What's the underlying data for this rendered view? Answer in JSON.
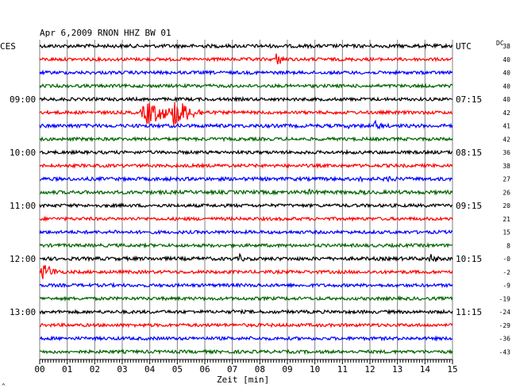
{
  "chart_data": {
    "type": "line",
    "title": "Apr 6,2009   RNON HHZ BW 01",
    "left_timezone": "CES",
    "right_timezone": "UTC",
    "dc_label": "DC",
    "xlabel": "Zeit [min]",
    "x_ticks": [
      "00",
      "01",
      "02",
      "03",
      "04",
      "05",
      "06",
      "07",
      "08",
      "09",
      "10",
      "11",
      "12",
      "13",
      "14",
      "15"
    ],
    "xlim": [
      0,
      15
    ],
    "grid": true,
    "trace_colors": [
      "#000000",
      "#ff0000",
      "#0000ff",
      "#006400"
    ],
    "left_hour_labels": [
      {
        "row": 4,
        "text": "09:00"
      },
      {
        "row": 8,
        "text": "10:00"
      },
      {
        "row": 12,
        "text": "11:00"
      },
      {
        "row": 16,
        "text": "12:00"
      },
      {
        "row": 20,
        "text": "13:00"
      }
    ],
    "right_hour_labels": [
      {
        "row": 0,
        "text": "UTC"
      },
      {
        "row": 4,
        "text": "07:15"
      },
      {
        "row": 8,
        "text": "08:15"
      },
      {
        "row": 12,
        "text": "09:15"
      },
      {
        "row": 16,
        "text": "10:15"
      },
      {
        "row": 20,
        "text": "11:15"
      }
    ],
    "dc_offsets": [
      "38",
      "40",
      "40",
      "40",
      "40",
      "42",
      "41",
      "42",
      "36",
      "38",
      "27",
      "26",
      "20",
      "21",
      "15",
      "8",
      "-0",
      "-2",
      "-9",
      "-19",
      "-24",
      "-29",
      "-36",
      "-43"
    ],
    "traces": [
      {
        "row": 0,
        "amp": 2.2,
        "events": [
          {
            "t": 13.4,
            "amp": 3,
            "dur": 0.4
          }
        ]
      },
      {
        "row": 1,
        "amp": 2.0,
        "events": [
          {
            "t": 7.6,
            "amp": 4,
            "dur": 0.6
          },
          {
            "t": 8.5,
            "amp": 9,
            "dur": 0.9
          }
        ]
      },
      {
        "row": 2,
        "amp": 2.0,
        "events": []
      },
      {
        "row": 3,
        "amp": 2.0,
        "events": [
          {
            "t": 5.8,
            "amp": 3,
            "dur": 0.4
          }
        ]
      },
      {
        "row": 4,
        "amp": 2.0,
        "events": []
      },
      {
        "row": 5,
        "amp": 2.0,
        "events": [
          {
            "t": 3.6,
            "amp": 16,
            "dur": 2.6
          },
          {
            "t": 4.7,
            "amp": 20,
            "dur": 1.8
          }
        ]
      },
      {
        "row": 6,
        "amp": 2.2,
        "events": [
          {
            "t": 1.3,
            "amp": 4,
            "dur": 0.3
          },
          {
            "t": 11.1,
            "amp": 4,
            "dur": 0.8
          },
          {
            "t": 12.1,
            "amp": 7,
            "dur": 0.9
          }
        ]
      },
      {
        "row": 7,
        "amp": 2.0,
        "events": []
      },
      {
        "row": 8,
        "amp": 2.0,
        "events": []
      },
      {
        "row": 9,
        "amp": 2.0,
        "events": []
      },
      {
        "row": 10,
        "amp": 2.2,
        "events": [
          {
            "t": 11.5,
            "amp": 4,
            "dur": 1.2
          },
          {
            "t": 12.6,
            "amp": 6,
            "dur": 0.8
          }
        ]
      },
      {
        "row": 11,
        "amp": 2.2,
        "events": [
          {
            "t": 9.6,
            "amp": 4,
            "dur": 1.6
          },
          {
            "t": 11.6,
            "amp": 5,
            "dur": 0.8
          }
        ]
      },
      {
        "row": 12,
        "amp": 2.0,
        "events": []
      },
      {
        "row": 13,
        "amp": 2.0,
        "events": []
      },
      {
        "row": 14,
        "amp": 2.0,
        "events": [
          {
            "t": 2.7,
            "amp": 4,
            "dur": 0.4
          }
        ]
      },
      {
        "row": 15,
        "amp": 2.0,
        "events": []
      },
      {
        "row": 16,
        "amp": 2.2,
        "events": [
          {
            "t": 2.0,
            "amp": 3,
            "dur": 0.4
          },
          {
            "t": 7.2,
            "amp": 6,
            "dur": 0.6
          },
          {
            "t": 14.1,
            "amp": 7,
            "dur": 0.9
          }
        ]
      },
      {
        "row": 17,
        "amp": 2.0,
        "events": [
          {
            "t": 0.0,
            "amp": 12,
            "dur": 1.2
          }
        ]
      },
      {
        "row": 18,
        "amp": 2.0,
        "events": [
          {
            "t": 7.8,
            "amp": 4,
            "dur": 0.5
          }
        ]
      },
      {
        "row": 19,
        "amp": 2.0,
        "events": []
      },
      {
        "row": 20,
        "amp": 2.0,
        "events": [
          {
            "t": 7.0,
            "amp": 3,
            "dur": 0.3
          }
        ]
      },
      {
        "row": 21,
        "amp": 2.0,
        "events": []
      },
      {
        "row": 22,
        "amp": 2.0,
        "events": [
          {
            "t": 7.6,
            "amp": 3,
            "dur": 0.4
          }
        ]
      },
      {
        "row": 23,
        "amp": 2.0,
        "events": []
      }
    ],
    "corner_mark": "^"
  }
}
